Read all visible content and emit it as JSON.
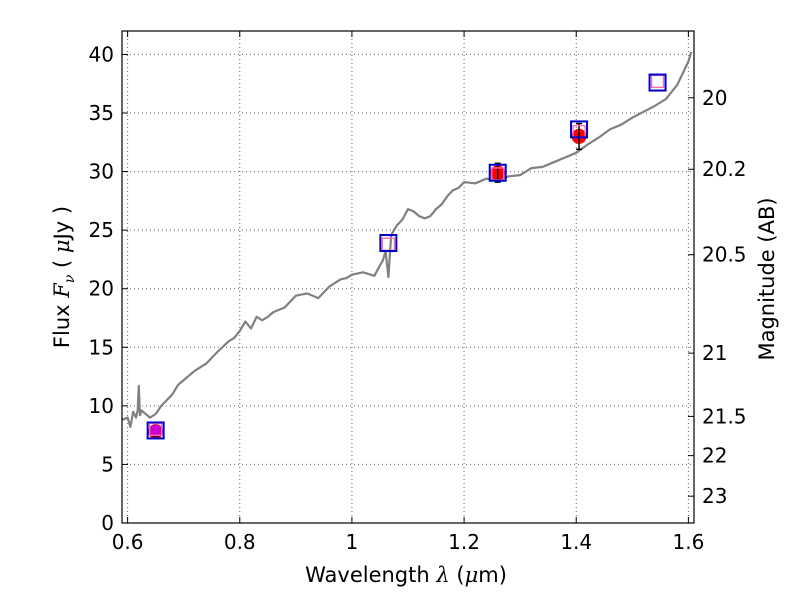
{
  "chart_data": {
    "type": "line",
    "xlabel": "Wavelength",
    "xlabel_symbol": "λ",
    "xlabel_unit_prefix": "(",
    "xlabel_unit_mu": "μ",
    "xlabel_unit_rest": "m)",
    "ylabel": "Flux",
    "ylabel_symbol": "F",
    "ylabel_subscript": "ν",
    "ylabel_unit_prefix": "(",
    "ylabel_unit_mu": "μ",
    "ylabel_unit_rest": "Jy )",
    "y2label": "Magnitude (AB)",
    "xlim": [
      0.59,
      1.61
    ],
    "ylim": [
      0,
      42
    ],
    "grid": true,
    "x_ticks": [
      0.6,
      0.8,
      1.0,
      1.2,
      1.4,
      1.6
    ],
    "x_tick_labels": [
      "0.6",
      "0.8",
      "1",
      "1.2",
      "1.4",
      "1.6"
    ],
    "y_ticks": [
      0,
      5,
      10,
      15,
      20,
      25,
      30,
      35,
      40
    ],
    "y_tick_labels": [
      "0",
      "5",
      "10",
      "15",
      "20",
      "25",
      "30",
      "35",
      "40"
    ],
    "y2_ticks": [
      {
        "label": "20",
        "flux": 36.3
      },
      {
        "label": "20.2",
        "flux": 30.2
      },
      {
        "label": "20.5",
        "flux": 22.9
      },
      {
        "label": "21",
        "flux": 14.5
      },
      {
        "label": "21.5",
        "flux": 9.1
      },
      {
        "label": "22",
        "flux": 5.75
      },
      {
        "label": "23",
        "flux": 2.29
      }
    ],
    "series": [
      {
        "name": "spectrum",
        "color": "#808080",
        "x": [
          0.59,
          0.6,
          0.605,
          0.61,
          0.615,
          0.618,
          0.62,
          0.622,
          0.625,
          0.63,
          0.64,
          0.65,
          0.66,
          0.67,
          0.68,
          0.69,
          0.7,
          0.72,
          0.74,
          0.76,
          0.78,
          0.79,
          0.8,
          0.81,
          0.82,
          0.83,
          0.84,
          0.85,
          0.86,
          0.88,
          0.9,
          0.92,
          0.94,
          0.96,
          0.98,
          0.99,
          1.0,
          1.02,
          1.04,
          1.05,
          1.055,
          1.06,
          1.065,
          1.07,
          1.08,
          1.09,
          1.1,
          1.11,
          1.12,
          1.13,
          1.14,
          1.15,
          1.16,
          1.17,
          1.18,
          1.19,
          1.2,
          1.22,
          1.24,
          1.26,
          1.28,
          1.3,
          1.32,
          1.34,
          1.36,
          1.38,
          1.4,
          1.42,
          1.44,
          1.46,
          1.48,
          1.5,
          1.52,
          1.54,
          1.56,
          1.58,
          1.59,
          1.6,
          1.605
        ],
        "y": [
          8.8,
          9.0,
          8.2,
          9.5,
          9.0,
          9.6,
          11.7,
          9.2,
          9.6,
          9.4,
          9.0,
          9.3,
          10.0,
          10.5,
          11.0,
          11.8,
          12.2,
          13.0,
          13.6,
          14.6,
          15.5,
          15.8,
          16.4,
          17.2,
          16.6,
          17.6,
          17.3,
          17.6,
          18.0,
          18.4,
          19.4,
          19.6,
          19.2,
          20.2,
          20.8,
          20.9,
          21.2,
          21.4,
          21.1,
          22.0,
          22.4,
          23.2,
          21.0,
          24.6,
          25.4,
          25.9,
          26.8,
          26.6,
          26.2,
          26.0,
          26.2,
          26.8,
          27.2,
          27.9,
          28.4,
          28.6,
          29.1,
          29.0,
          29.4,
          29.3,
          29.6,
          29.7,
          30.3,
          30.4,
          30.8,
          31.2,
          31.6,
          32.3,
          32.9,
          33.6,
          34.0,
          34.6,
          35.1,
          35.6,
          36.2,
          37.4,
          38.4,
          39.4,
          40.2
        ]
      }
    ],
    "measured_points": {
      "color": "#ff0000",
      "points": [
        {
          "x": 0.65,
          "y": 7.8,
          "err": 0.4
        },
        {
          "x": 1.26,
          "y": 29.9,
          "err": 0.8
        },
        {
          "x": 1.405,
          "y": 33.0,
          "err": 1.1
        }
      ]
    },
    "model_points": {
      "color": "#ff69b4",
      "points": [
        {
          "x": 0.65,
          "y": 8.0
        },
        {
          "x": 1.065,
          "y": 23.8
        },
        {
          "x": 1.26,
          "y": 29.8
        },
        {
          "x": 1.405,
          "y": 33.4
        },
        {
          "x": 1.545,
          "y": 37.7
        }
      ]
    },
    "box_markers": {
      "color": "#0000cc",
      "points": [
        {
          "x": 0.65,
          "y": 7.9
        },
        {
          "x": 1.065,
          "y": 23.9
        },
        {
          "x": 1.26,
          "y": 29.9
        },
        {
          "x": 1.405,
          "y": 33.6
        },
        {
          "x": 1.545,
          "y": 37.6
        }
      ]
    },
    "magenta_point": {
      "x": 0.65,
      "y": 7.9,
      "color": "#cc00cc"
    }
  }
}
